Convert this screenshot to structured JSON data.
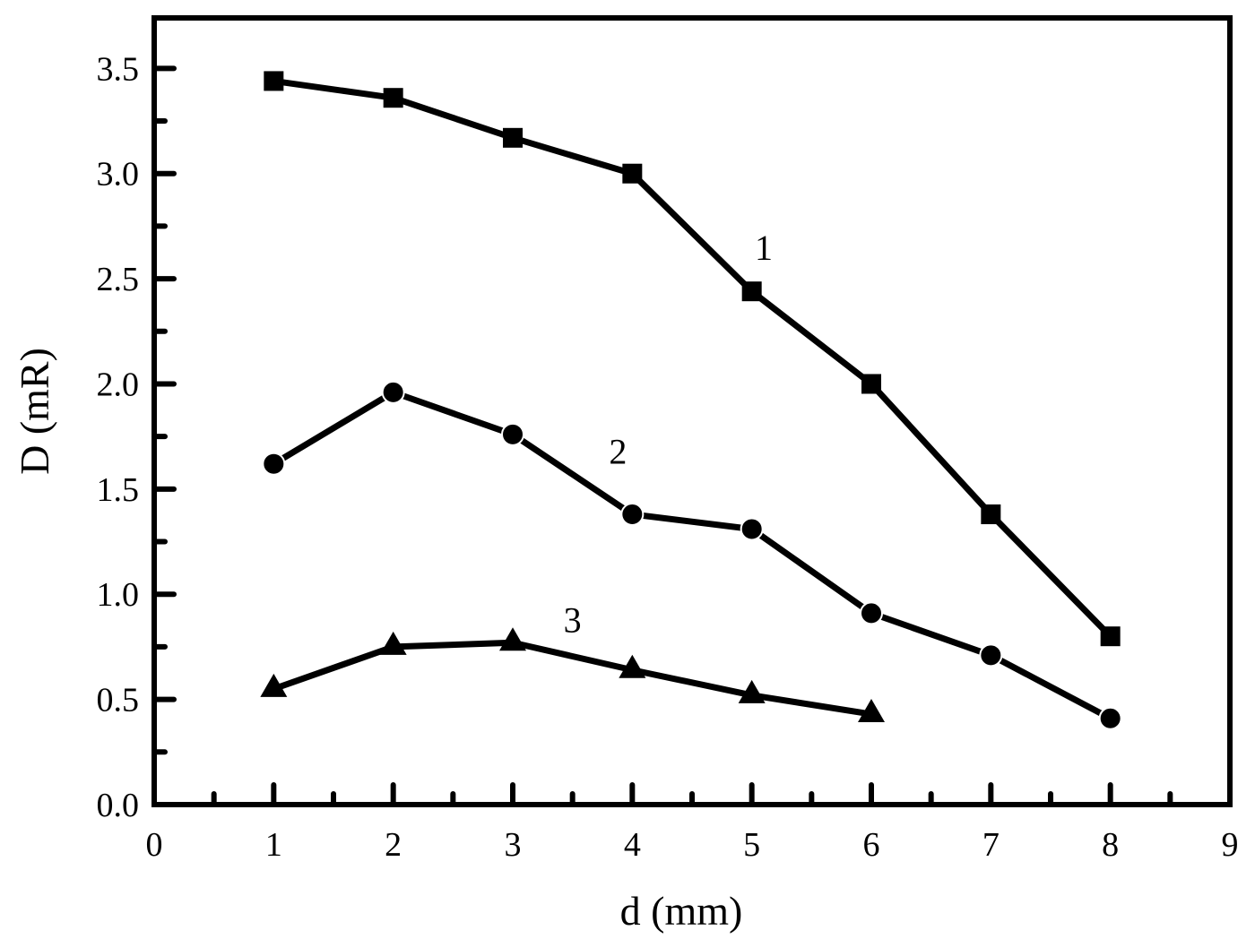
{
  "chart_data": {
    "type": "line",
    "title": "",
    "xlabel": "d (mm)",
    "ylabel": "D (mR)",
    "xlim": [
      0,
      9
    ],
    "ylim": [
      0,
      3.74
    ],
    "x_ticks": [
      "0",
      "1",
      "2",
      "3",
      "4",
      "5",
      "6",
      "7",
      "8",
      "9"
    ],
    "y_ticks": [
      "0.0",
      "0.5",
      "1.0",
      "1.5",
      "2.0",
      "2.5",
      "3.0",
      "3.5"
    ],
    "grid": false,
    "legend": "none (inline labels 1, 2, 3)",
    "series": [
      {
        "name": "1",
        "marker": "square",
        "x": [
          1,
          2,
          3,
          4,
          5,
          6,
          7,
          8
        ],
        "values": [
          3.44,
          3.36,
          3.17,
          3.0,
          2.44,
          2.0,
          1.38,
          0.8
        ],
        "label_pos": [
          5.1,
          2.65
        ]
      },
      {
        "name": "2",
        "marker": "circle",
        "x": [
          1,
          2,
          3,
          4,
          5,
          6,
          7,
          8
        ],
        "values": [
          1.62,
          1.96,
          1.76,
          1.38,
          1.31,
          0.91,
          0.71,
          0.41
        ],
        "label_pos": [
          3.88,
          1.68
        ]
      },
      {
        "name": "3",
        "marker": "triangle",
        "x": [
          1,
          2,
          3,
          4,
          5,
          6
        ],
        "values": [
          0.55,
          0.75,
          0.77,
          0.64,
          0.52,
          0.43
        ],
        "label_pos": [
          3.5,
          0.88
        ]
      }
    ]
  }
}
